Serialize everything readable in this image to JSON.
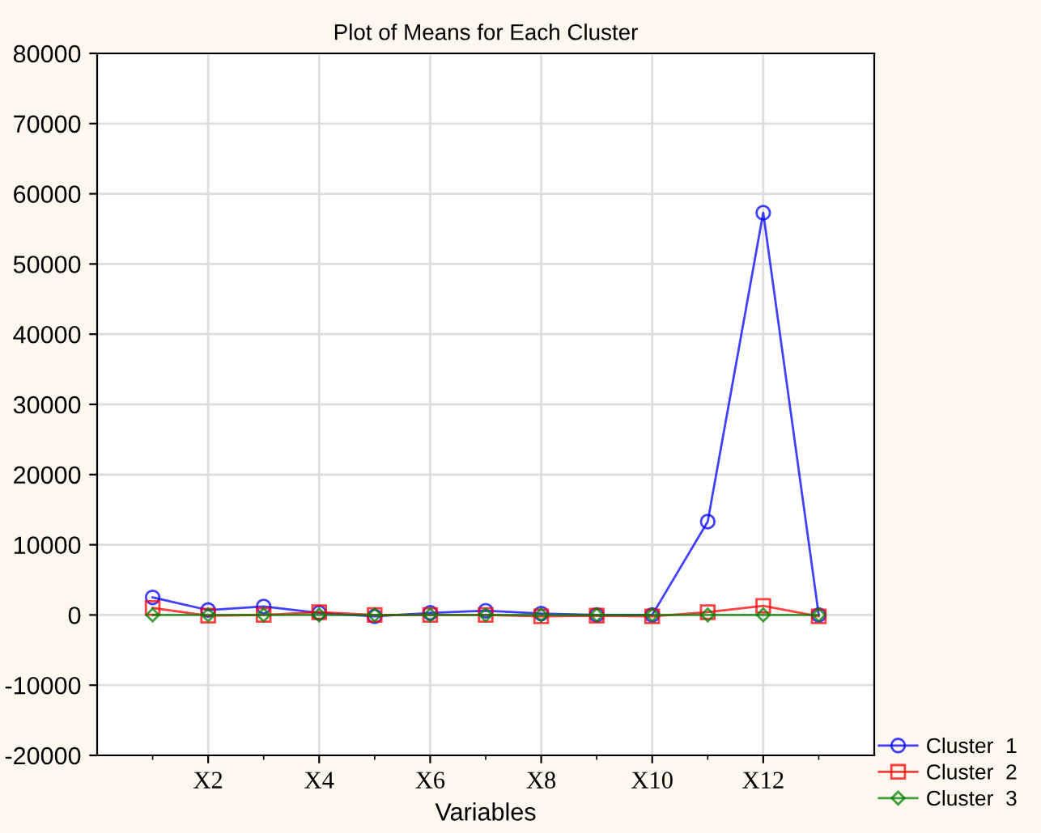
{
  "chart_data": {
    "type": "line",
    "title": "Plot of Means for Each Cluster",
    "xlabel": "Variables",
    "categories": [
      null,
      "X2",
      null,
      "X4",
      null,
      "X6",
      null,
      "X8",
      null,
      "X10",
      null,
      "X12",
      null
    ],
    "series": [
      {
        "name": "Cluster  1",
        "color": "#0000ff",
        "marker": "circle",
        "values": [
          2500,
          700,
          1200,
          300,
          -200,
          300,
          600,
          200,
          0,
          0,
          13300,
          57300,
          0
        ]
      },
      {
        "name": "Cluster  2",
        "color": "#ff0000",
        "marker": "square",
        "values": [
          1000,
          -100,
          0,
          400,
          0,
          0,
          0,
          -200,
          -100,
          -200,
          400,
          1300,
          -200
        ]
      },
      {
        "name": "Cluster  3",
        "color": "#008000",
        "marker": "diamond",
        "values": [
          0,
          0,
          0,
          0,
          0,
          0,
          0,
          0,
          0,
          0,
          0,
          0,
          0
        ]
      }
    ],
    "ylim": [
      -20000,
      80000
    ],
    "yticks": [
      -20000,
      -10000,
      0,
      10000,
      20000,
      30000,
      40000,
      50000,
      60000,
      70000,
      80000
    ],
    "grid": true,
    "legend": "bottom right",
    "line_style": "solid"
  }
}
